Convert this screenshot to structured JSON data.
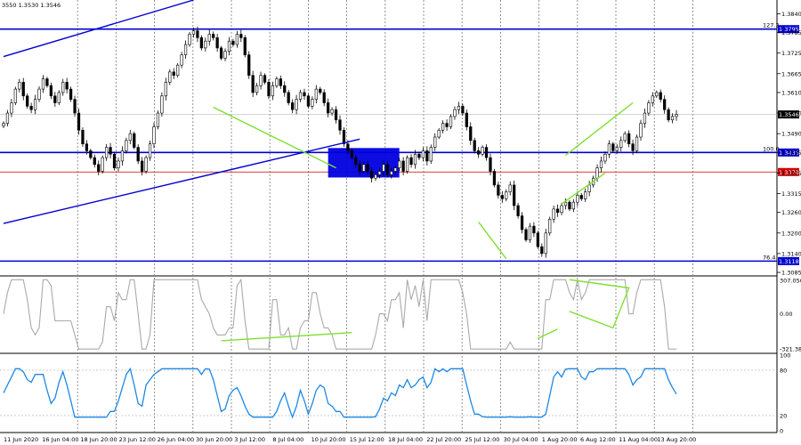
{
  "header": {
    "ohlc_text": "3550 1.3530 1.3546"
  },
  "chart_data": {
    "type": "candlestick",
    "main_panel": {
      "y_ticks": [
        "1.3840",
        "1.3785",
        "1.3725",
        "1.3665",
        "1.3610",
        "1.3550",
        "1.3490",
        "1.3435",
        "1.3375",
        "1.3315",
        "1.3260",
        "1.3200",
        "1.3140",
        "1.3085"
      ],
      "horizontal_levels": [
        {
          "price_tag": "1.3795",
          "fib_label": "127.2",
          "color": "#0000d0"
        },
        {
          "price_tag": "1.3435",
          "fib_label": "100.0",
          "color": "#0000d0"
        },
        {
          "price_tag": "1.3378",
          "fib_label": "",
          "color": "#d00000"
        },
        {
          "price_tag": "1.3118",
          "fib_label": "76.4",
          "color": "#0000d0"
        }
      ],
      "current_price_tag": "1.3546",
      "close_series": [
        1.352,
        1.355,
        1.358,
        1.362,
        1.364,
        1.36,
        1.357,
        1.356,
        1.359,
        1.362,
        1.365,
        1.363,
        1.36,
        1.358,
        1.361,
        1.364,
        1.362,
        1.359,
        1.355,
        1.35,
        1.346,
        1.344,
        1.342,
        1.34,
        1.338,
        1.342,
        1.345,
        1.343,
        1.339,
        1.341,
        1.344,
        1.347,
        1.349,
        1.345,
        1.341,
        1.338,
        1.342,
        1.346,
        1.351,
        1.355,
        1.36,
        1.364,
        1.367,
        1.366,
        1.369,
        1.372,
        1.375,
        1.378,
        1.379,
        1.377,
        1.374,
        1.376,
        1.378,
        1.377,
        1.374,
        1.371,
        1.373,
        1.376,
        1.375,
        1.378,
        1.377,
        1.372,
        1.366,
        1.361,
        1.363,
        1.366,
        1.364,
        1.36,
        1.363,
        1.365,
        1.363,
        1.361,
        1.358,
        1.356,
        1.359,
        1.361,
        1.36,
        1.357,
        1.359,
        1.362,
        1.361,
        1.358,
        1.355,
        1.356,
        1.353,
        1.35,
        1.346,
        1.344,
        1.342,
        1.34,
        1.338,
        1.34,
        1.338,
        1.336,
        1.337,
        1.338,
        1.34,
        1.337,
        1.338,
        1.339,
        1.341,
        1.338,
        1.342,
        1.34,
        1.343,
        1.342,
        1.344,
        1.341,
        1.345,
        1.348,
        1.35,
        1.352,
        1.351,
        1.354,
        1.356,
        1.357,
        1.355,
        1.351,
        1.347,
        1.344,
        1.343,
        1.345,
        1.342,
        1.338,
        1.334,
        1.331,
        1.33,
        1.332,
        1.334,
        1.328,
        1.325,
        1.321,
        1.318,
        1.322,
        1.32,
        1.316,
        1.314,
        1.32,
        1.324,
        1.327,
        1.326,
        1.328,
        1.329,
        1.327,
        1.329,
        1.331,
        1.33,
        1.332,
        1.334,
        1.336,
        1.339,
        1.341,
        1.343,
        1.346,
        1.344,
        1.345,
        1.347,
        1.349,
        1.346,
        1.344,
        1.348,
        1.352,
        1.355,
        1.358,
        1.36,
        1.361,
        1.359,
        1.356,
        1.353,
        1.354,
        1.3546
      ],
      "trendlines": [
        {
          "color": "#0000d0",
          "from": [
            0,
            1.3715
          ],
          "to": [
            48,
            1.388
          ]
        },
        {
          "color": "#0000d0",
          "from": [
            0,
            1.3228
          ],
          "to": [
            90,
            1.3474
          ]
        },
        {
          "color": "#7fe030",
          "from": [
            53,
            1.3567
          ],
          "to": [
            84,
            1.339
          ]
        },
        {
          "color": "#7fe030",
          "from": [
            120,
            1.3232
          ],
          "to": [
            127,
            1.3125
          ]
        },
        {
          "color": "#7fe030",
          "from": [
            141,
            1.3285
          ],
          "to": [
            152,
            1.3375
          ]
        },
        {
          "color": "#7fe030",
          "from": [
            142,
            1.3427
          ],
          "to": [
            159,
            1.358
          ]
        }
      ],
      "rectangle": {
        "x0_index": 82,
        "x1_index": 100,
        "top": 1.3448,
        "bottom": 1.3362,
        "color": "#0000e0"
      }
    },
    "cci_panel": {
      "y_ticks": [
        "307.0503",
        "0.00",
        "-321.389"
      ],
      "ylim": [
        -321.389,
        307.0503
      ]
    },
    "rsi_panel": {
      "y_ticks": [
        "100",
        "80",
        "20",
        "0"
      ],
      "ylim": [
        0,
        100
      ]
    },
    "x_tick_labels": [
      "11 Jun 2020",
      "16 Jun 04:00",
      "18 Jun 20:00",
      "23 Jun 12:00",
      "26 Jun 04:00",
      "30 Jun 20:00",
      "3 Jul 12:00",
      "8 Jul 04:00",
      "10 Jul 20:00",
      "15 Jul 12:00",
      "18 Jul 04:00",
      "22 Jul 20:00",
      "25 Jul 12:00",
      "30 Jul 04:00",
      "1 Aug 20:00",
      "6 Aug 12:00",
      "11 Aug 04:00",
      "13 Aug 20:00"
    ]
  },
  "colors": {
    "bull": "#000000",
    "bear": "#000000",
    "cci": "#aaaaaa",
    "rsi": "#1e88e5",
    "axis": "#000000",
    "grid": "#777777"
  }
}
